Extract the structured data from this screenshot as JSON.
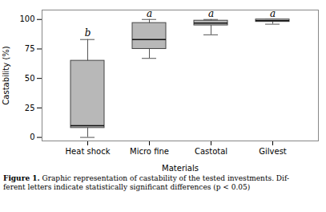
{
  "chart_data": {
    "type": "box",
    "categories": [
      "Heat shock",
      "Micro fine",
      "Castotal",
      "Gilvest"
    ],
    "q1": [
      8,
      75,
      95,
      98
    ],
    "median": [
      10,
      83,
      97,
      99
    ],
    "q3": [
      65,
      97,
      99,
      100
    ],
    "whislo": [
      0,
      67,
      87,
      96
    ],
    "whishi": [
      83,
      100,
      100,
      100
    ],
    "color": "#b8b8b8",
    "annotations": [
      {
        "text": "b",
        "x": "Heat shock",
        "y": 86
      },
      {
        "text": "a",
        "x": "Micro fine",
        "y": 102
      },
      {
        "text": "a",
        "x": "Castotal",
        "y": 102
      },
      {
        "text": "a",
        "x": "Gilvest",
        "y": 102
      }
    ],
    "ylabel": "Castability (%)",
    "xlabel": "Materials",
    "ylim": [
      -3,
      108
    ],
    "yticks": [
      0,
      25,
      50,
      75,
      100
    ],
    "caption": [
      "Figure 1.",
      " Graphic representation of castability of the tested investments. Dif-\nferent letters indicate statistically significant differences (p < 0.05)"
    ]
  }
}
